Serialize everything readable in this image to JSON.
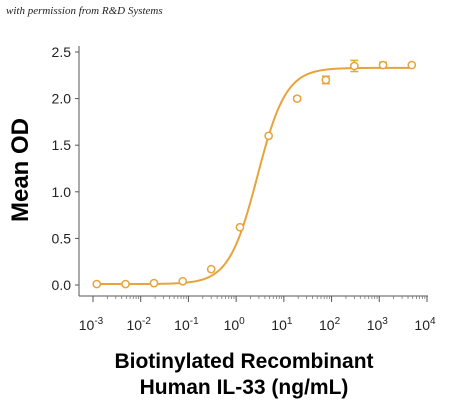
{
  "watermark": "with permission from R&D Systems",
  "chart_data": {
    "type": "scatter",
    "title": "",
    "xlabel_line1": "Biotinylated Recombinant",
    "xlabel_line2": "Human IL-33 (ng/mL)",
    "ylabel": "Mean OD",
    "x_scale": "log",
    "xlim": [
      0.001,
      10000
    ],
    "ylim": [
      0,
      2.5
    ],
    "x_ticks": [
      {
        "base": "10",
        "exp": "-3",
        "value": 0.001
      },
      {
        "base": "10",
        "exp": "-2",
        "value": 0.01
      },
      {
        "base": "10",
        "exp": "-1",
        "value": 0.1
      },
      {
        "base": "10",
        "exp": "0",
        "value": 1
      },
      {
        "base": "10",
        "exp": "1",
        "value": 10
      },
      {
        "base": "10",
        "exp": "2",
        "value": 100
      },
      {
        "base": "10",
        "exp": "3",
        "value": 1000
      },
      {
        "base": "10",
        "exp": "4",
        "value": 10000
      }
    ],
    "y_ticks": [
      "0.0",
      "0.5",
      "1.0",
      "1.5",
      "2.0",
      "2.5"
    ],
    "grid": false,
    "color": "#E8A33A",
    "fit": "4-parameter logistic",
    "points": [
      {
        "x": 0.0012,
        "y": 0.01,
        "err": 0.0
      },
      {
        "x": 0.0048,
        "y": 0.01,
        "err": 0.0
      },
      {
        "x": 0.019,
        "y": 0.02,
        "err": 0.0
      },
      {
        "x": 0.076,
        "y": 0.04,
        "err": 0.0
      },
      {
        "x": 0.3,
        "y": 0.17,
        "err": 0.0
      },
      {
        "x": 1.2,
        "y": 0.62,
        "err": 0.0
      },
      {
        "x": 4.8,
        "y": 1.6,
        "err": 0.0
      },
      {
        "x": 19,
        "y": 2.0,
        "err": 0.02
      },
      {
        "x": 76,
        "y": 2.2,
        "err": 0.04
      },
      {
        "x": 300,
        "y": 2.35,
        "err": 0.06
      },
      {
        "x": 1200,
        "y": 2.36,
        "err": 0.03
      },
      {
        "x": 4800,
        "y": 2.36,
        "err": 0.0
      }
    ],
    "curve": {
      "bottom": 0.01,
      "top": 2.33,
      "ec50": 2.8,
      "hill": 1.45
    }
  }
}
